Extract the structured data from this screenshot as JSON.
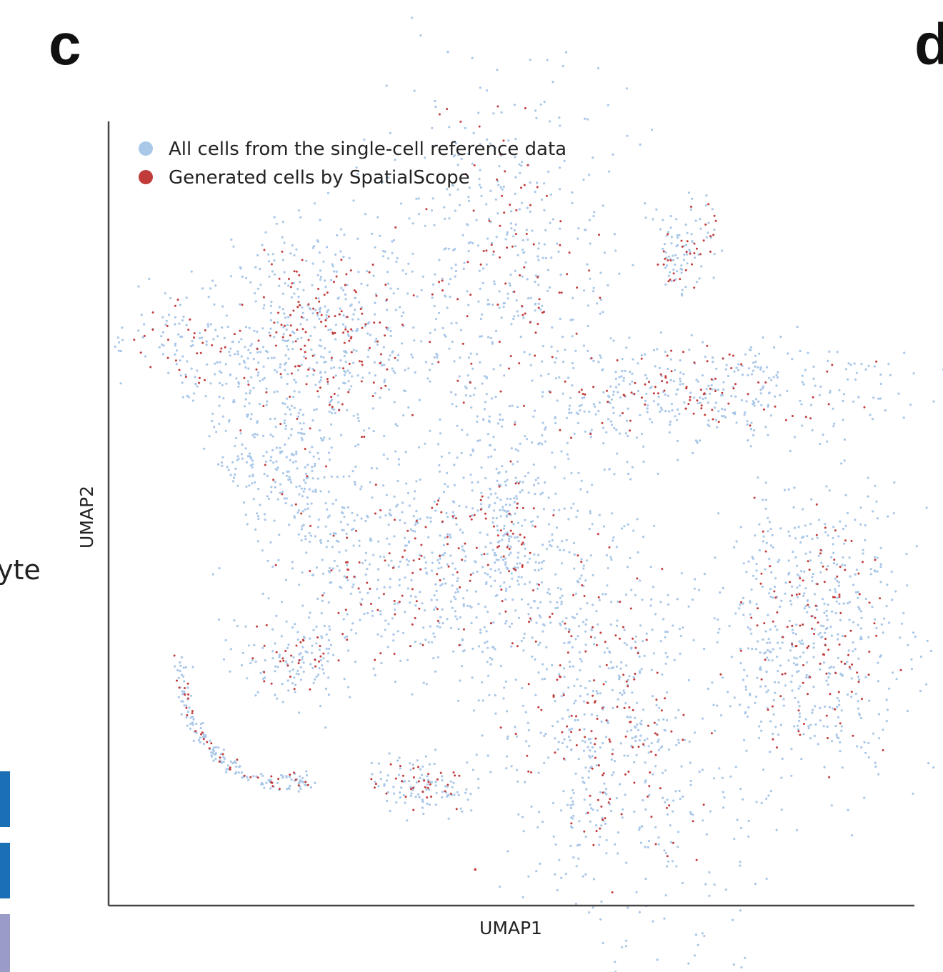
{
  "panels": {
    "left_letter": "c",
    "right_letter": "d"
  },
  "fragment_text": "yte",
  "side_bar_colors": [
    "#1a6fb5",
    "#1a6fb5",
    "#9b9bc8"
  ],
  "chart_data": {
    "type": "scatter",
    "title": "",
    "xlabel": "UMAP1",
    "ylabel": "UMAP2",
    "xlim": [
      0,
      100
    ],
    "ylim": [
      0,
      100
    ],
    "grid": false,
    "legend_placement": "top-left",
    "series": [
      {
        "name": "All cells from the single-cell reference data",
        "color": "#a9c7e8"
      },
      {
        "name": "Generated cells by SpatialScope",
        "color": "#c23b3b"
      }
    ],
    "clusters": [
      {
        "x": 49.0,
        "y": 80.9,
        "sx": 7.5,
        "sy": 12.5,
        "rot": 0,
        "n_ref": 420,
        "n_gen": 90
      },
      {
        "x": 72.1,
        "y": 84.5,
        "sx": 2.2,
        "sy": 3.0,
        "rot": 0,
        "n_ref": 60,
        "n_gen": 25
      },
      {
        "x": 70.5,
        "y": 80.5,
        "sx": 0.8,
        "sy": 3.0,
        "rot": 20,
        "n_ref": 20,
        "n_gen": 8
      },
      {
        "x": 72.5,
        "y": 65.4,
        "sx": 13.0,
        "sy": 3.3,
        "rot": 4,
        "n_ref": 380,
        "n_gen": 90
      },
      {
        "x": 26.9,
        "y": 72.8,
        "sx": 6.2,
        "sy": 7.5,
        "rot": 0,
        "n_ref": 420,
        "n_gen": 140
      },
      {
        "x": 10.8,
        "y": 71.5,
        "sx": 5.0,
        "sy": 3.4,
        "rot": -20,
        "n_ref": 110,
        "n_gen": 30
      },
      {
        "x": 20.5,
        "y": 57.5,
        "sx": 3.4,
        "sy": 7.5,
        "rot": 30,
        "n_ref": 230,
        "n_gen": 10
      },
      {
        "x": 37.9,
        "y": 43.5,
        "sx": 9.5,
        "sy": 7.5,
        "rot": 0,
        "n_ref": 480,
        "n_gen": 100
      },
      {
        "x": 49.9,
        "y": 48.0,
        "sx": 2.2,
        "sy": 4.5,
        "rot": 0,
        "n_ref": 90,
        "n_gen": 30
      },
      {
        "x": 87.6,
        "y": 35.3,
        "sx": 6.0,
        "sy": 9.8,
        "rot": 0,
        "n_ref": 520,
        "n_gen": 120
      },
      {
        "x": 61.0,
        "y": 26.2,
        "sx": 7.5,
        "sy": 15.0,
        "rot": 18,
        "n_ref": 700,
        "n_gen": 150
      },
      {
        "x": 22.9,
        "y": 31.2,
        "sx": 3.5,
        "sy": 2.8,
        "rot": 0,
        "n_ref": 100,
        "n_gen": 30
      },
      {
        "x": 38.8,
        "y": 15.8,
        "sx": 3.5,
        "sy": 2.1,
        "rot": 0,
        "n_ref": 100,
        "n_gen": 35
      }
    ],
    "arc_cluster": {
      "points": [
        [
          9,
          32
        ],
        [
          10,
          24
        ],
        [
          14,
          18.5
        ],
        [
          20,
          15.5
        ],
        [
          25,
          16
        ]
      ],
      "n_ref": 150,
      "n_gen": 40
    },
    "outliers": [
      [
        45.5,
        4.6
      ]
    ]
  }
}
